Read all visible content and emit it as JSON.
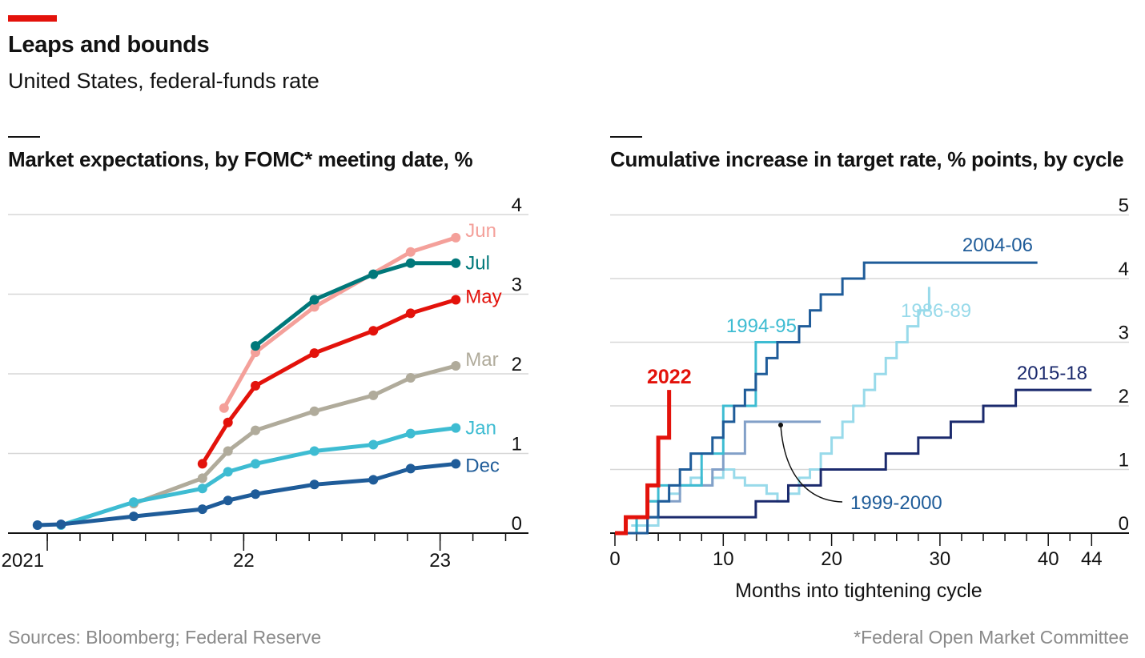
{
  "header": {
    "title": "Leaps and bounds",
    "subtitle": "United States, federal-funds rate"
  },
  "footer": {
    "source": "Sources: Bloomberg; Federal Reserve",
    "footnote": "*Federal Open Market Committee"
  },
  "colors": {
    "accent": "#e3120b",
    "grid": "#d7d7d7",
    "axis": "#121212"
  },
  "chart_data": [
    {
      "type": "line",
      "title": "Market expectations, by FOMC* meeting date, %",
      "y_ticks": [
        "0",
        "1",
        "2",
        "3",
        "4"
      ],
      "ylim": [
        0,
        4
      ],
      "x_tick_labels": [
        {
          "label": "2021",
          "x": 2021.0
        },
        {
          "label": "22",
          "x": 2022.0
        },
        {
          "label": "23",
          "x": 2023.0
        }
      ],
      "xlim": [
        2020.8,
        2023.45
      ],
      "series": [
        {
          "name": "Jun",
          "color": "#f4a09a",
          "x": [
            2021.9,
            2022.06,
            2022.36,
            2022.85,
            2023.08
          ],
          "values": [
            1.57,
            2.27,
            2.84,
            3.53,
            3.71
          ]
        },
        {
          "name": "Jul",
          "color": "#00787a",
          "x": [
            2022.06,
            2022.36,
            2022.66,
            2022.85,
            2023.08
          ],
          "values": [
            2.35,
            2.93,
            3.25,
            3.39,
            3.39
          ]
        },
        {
          "name": "May",
          "color": "#e3120b",
          "x": [
            2021.79,
            2021.92,
            2022.06,
            2022.36,
            2022.66,
            2022.85,
            2023.08
          ],
          "values": [
            0.87,
            1.39,
            1.85,
            2.26,
            2.54,
            2.76,
            2.93
          ]
        },
        {
          "name": "Mar",
          "color": "#b0ab9b",
          "x": [
            2021.44,
            2021.79,
            2021.92,
            2022.06,
            2022.36,
            2022.66,
            2022.85,
            2023.08
          ],
          "values": [
            0.37,
            0.69,
            1.03,
            1.29,
            1.53,
            1.73,
            1.95,
            2.1
          ]
        },
        {
          "name": "Jan",
          "color": "#3ebcd2",
          "x": [
            2021.07,
            2021.44,
            2021.79,
            2021.92,
            2022.06,
            2022.36,
            2022.66,
            2022.85,
            2023.08
          ],
          "values": [
            0.1,
            0.39,
            0.56,
            0.77,
            0.87,
            1.03,
            1.11,
            1.25,
            1.32
          ]
        },
        {
          "name": "Dec",
          "color": "#1f5c99",
          "x": [
            2020.95,
            2021.07,
            2021.44,
            2021.79,
            2021.92,
            2022.06,
            2022.36,
            2022.66,
            2022.85,
            2023.08
          ],
          "values": [
            0.1,
            0.11,
            0.21,
            0.3,
            0.41,
            0.49,
            0.61,
            0.67,
            0.81,
            0.87
          ]
        }
      ]
    },
    {
      "type": "line",
      "title": "Cumulative increase in target rate, % points, by cycle",
      "xlabel": "Months into tightening cycle",
      "x_ticks": [
        "0",
        "10",
        "20",
        "30",
        "40",
        "44"
      ],
      "xlim": [
        -0.5,
        47
      ],
      "y_ticks": [
        "0",
        "1",
        "2",
        "3",
        "4",
        "5"
      ],
      "ylim": [
        0,
        5
      ],
      "annotation": "1999-2000",
      "series": [
        {
          "name": "1986-89",
          "color": "#98daea",
          "step": true,
          "x": [
            1.5,
            4,
            5,
            6,
            7,
            8,
            9,
            10,
            11,
            12,
            13,
            14,
            15,
            16,
            17,
            18,
            19,
            20,
            21,
            22,
            23,
            24,
            25,
            26,
            27,
            28,
            29
          ],
          "values": [
            0.12,
            0.5,
            0.62,
            0.75,
            0.87,
            0.75,
            0.87,
            1.0,
            0.87,
            0.75,
            0.75,
            0.62,
            0.5,
            0.62,
            0.87,
            1.0,
            1.25,
            1.5,
            1.75,
            2.0,
            2.25,
            2.5,
            2.75,
            3.0,
            3.25,
            3.5,
            3.87
          ]
        },
        {
          "name": "1994-95",
          "color": "#3ebcd2",
          "step": true,
          "x": [
            0,
            2,
            3,
            4,
            7,
            8,
            9,
            10,
            13,
            17
          ],
          "values": [
            0.0,
            0.25,
            0.5,
            0.75,
            0.75,
            1.25,
            1.25,
            2.0,
            3.0,
            3.0
          ]
        },
        {
          "name": "1999-2000",
          "color": "#82a0c8",
          "step": true,
          "x": [
            0,
            2,
            3,
            5,
            6,
            8,
            9,
            10,
            12,
            19
          ],
          "values": [
            0.0,
            0.25,
            0.5,
            0.5,
            0.75,
            0.75,
            1.0,
            1.25,
            1.75,
            1.75
          ]
        },
        {
          "name": "2004-06",
          "color": "#1f5c99",
          "step": true,
          "x": [
            0,
            3,
            4,
            5,
            6,
            7,
            8,
            9,
            10,
            11,
            12,
            13,
            14,
            15,
            16,
            17,
            18,
            19,
            20,
            21,
            22,
            23,
            24,
            25,
            39
          ],
          "values": [
            0.0,
            0.25,
            0.5,
            0.75,
            1.0,
            1.25,
            1.25,
            1.5,
            1.75,
            2.0,
            2.25,
            2.5,
            2.75,
            3.0,
            3.0,
            3.25,
            3.5,
            3.75,
            3.75,
            4.0,
            4.0,
            4.25,
            4.25,
            4.25,
            4.25
          ]
        },
        {
          "name": "2015-18",
          "color": "#1b2a6d",
          "step": true,
          "x": [
            1,
            12,
            13,
            16,
            19,
            25,
            28,
            31,
            34,
            37,
            44
          ],
          "values": [
            0.25,
            0.25,
            0.5,
            0.75,
            1.0,
            1.25,
            1.5,
            1.75,
            2.0,
            2.25,
            2.25
          ]
        },
        {
          "name": "2022",
          "color": "#e3120b",
          "step": true,
          "x": [
            0,
            1,
            3,
            4,
            5
          ],
          "values": [
            0.0,
            0.25,
            0.75,
            1.5,
            2.25
          ]
        }
      ]
    }
  ]
}
